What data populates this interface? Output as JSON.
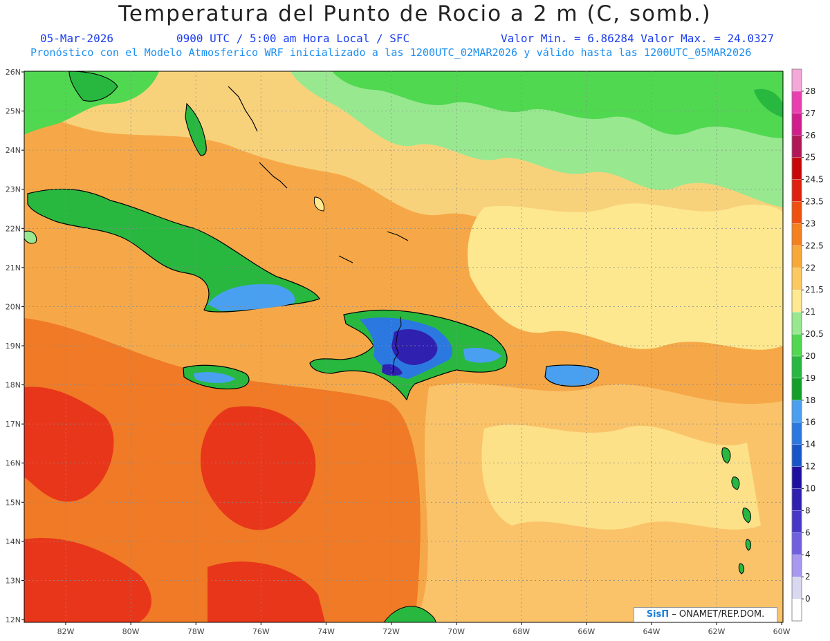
{
  "header": {
    "title": "Temperatura del Punto de Rocio a 2 m (C, somb.)",
    "date": "05-Mar-2026",
    "time": "0900 UTC / 5:00 am Hora Local / SFC",
    "minmax": "Valor Min. = 6.86284  Valor Max. = 24.0327",
    "model": "Pronóstico con el Modelo Atmosferico WRF inicializado a las 1200UTC_02MAR2026 y válido hasta las  1200UTC_05MAR2026"
  },
  "axes": {
    "lon_labels": [
      "82W",
      "80W",
      "78W",
      "76W",
      "74W",
      "72W",
      "70W",
      "68W",
      "66W",
      "64W",
      "62W",
      "60W"
    ],
    "lat_labels": [
      "12N",
      "13N",
      "14N",
      "15N",
      "16N",
      "17N",
      "18N",
      "19N",
      "20N",
      "21N",
      "22N",
      "23N",
      "24N",
      "25N",
      "26N"
    ]
  },
  "colorbar": {
    "labels": [
      "0",
      "2",
      "4",
      "6",
      "8",
      "10",
      "12",
      "14",
      "16",
      "18",
      "19",
      "20",
      "20.5",
      "21",
      "21.5",
      "22",
      "22.5",
      "23",
      "23.5",
      "24.5",
      "25",
      "26",
      "27",
      "28"
    ],
    "colors": [
      "#ffffff",
      "#d8d8f0",
      "#a898f0",
      "#7060e0",
      "#4838c8",
      "#3020b0",
      "#2010a0",
      "#1856c8",
      "#2b78e0",
      "#4aa0f0",
      "#14a028",
      "#28b840",
      "#50d850",
      "#98e890",
      "#fee890",
      "#fcc860",
      "#f8a838",
      "#f48020",
      "#ee5010",
      "#e02010",
      "#c80808",
      "#b01858",
      "#d01e8c",
      "#e840b0",
      "#f4a8d8"
    ]
  },
  "map": {
    "colors": {
      "ocean_red": "#e82814",
      "ocean_orange": "#f49e3c",
      "ocean_yellow": "#fde890",
      "green": "#28b840",
      "light_green": "#98e890",
      "blue": "#2b78e0",
      "dark_blue": "#3020b0"
    }
  },
  "credit": {
    "logo": "SisΠ",
    "text": "– ONAMET/REP.DOM."
  }
}
